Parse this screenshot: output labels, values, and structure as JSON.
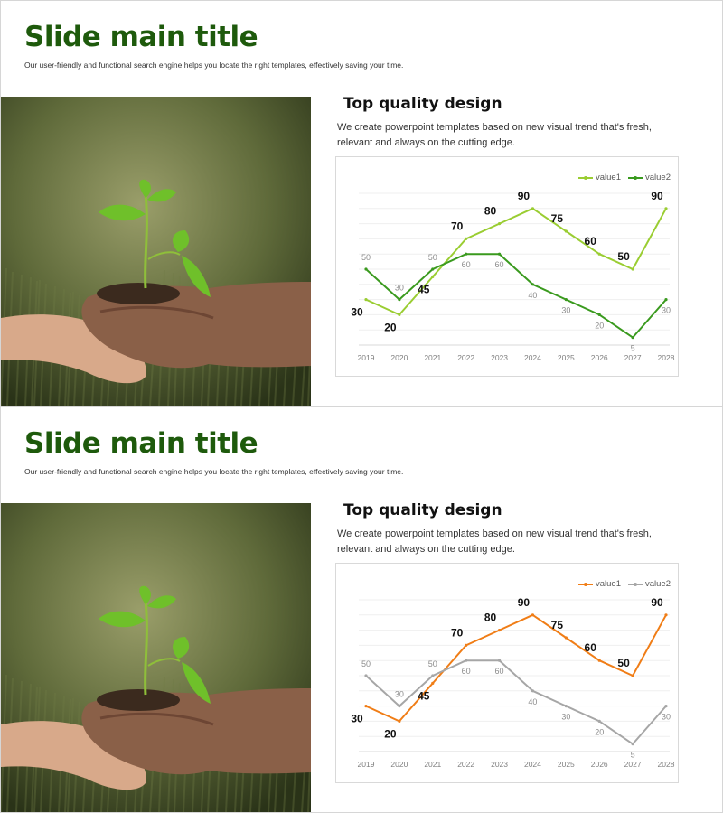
{
  "slides": [
    {
      "title": "Slide main title",
      "subtitle": "Our user-friendly and functional search engine helps you locate the right templates, effectively saving your time.",
      "heading": "Top quality design",
      "body": "We create powerpoint templates based on new visual trend that's fresh, relevant and always on the cutting edge.",
      "photo": "hands holding a young green seedling in soil",
      "colors": {
        "title": "#1e5a0c",
        "value1": "#9acd32",
        "value2": "#3a9a1e"
      },
      "chart_data": {
        "type": "line",
        "categories": [
          "2019",
          "2020",
          "2021",
          "2022",
          "2023",
          "2024",
          "2025",
          "2026",
          "2027",
          "2028"
        ],
        "series": [
          {
            "name": "value1",
            "values": [
              30,
              20,
              45,
              70,
              80,
              90,
              75,
              60,
              50,
              90
            ]
          },
          {
            "name": "value2",
            "values": [
              50,
              30,
              50,
              60,
              60,
              40,
              30,
              20,
              5,
              30
            ]
          }
        ],
        "ylim": [
          0,
          100
        ],
        "grid": true,
        "legend": "top-right"
      }
    },
    {
      "title": "Slide main title",
      "subtitle": "Our user-friendly and functional search engine helps you locate the right templates, effectively saving your time.",
      "heading": "Top quality design",
      "body": "We create powerpoint templates based on new visual trend that's fresh, relevant and always on the cutting edge.",
      "photo": "hands holding a young green seedling in soil",
      "colors": {
        "title": "#1e5a0c",
        "value1": "#f07d16",
        "value2": "#a6a6a6"
      },
      "chart_data": {
        "type": "line",
        "categories": [
          "2019",
          "2020",
          "2021",
          "2022",
          "2023",
          "2024",
          "2025",
          "2026",
          "2027",
          "2028"
        ],
        "series": [
          {
            "name": "value1",
            "values": [
              30,
              20,
              45,
              70,
              80,
              90,
              75,
              60,
              50,
              90
            ]
          },
          {
            "name": "value2",
            "values": [
              50,
              30,
              50,
              60,
              60,
              40,
              30,
              20,
              5,
              30
            ]
          }
        ],
        "ylim": [
          0,
          100
        ],
        "grid": true,
        "legend": "top-right"
      }
    }
  ]
}
